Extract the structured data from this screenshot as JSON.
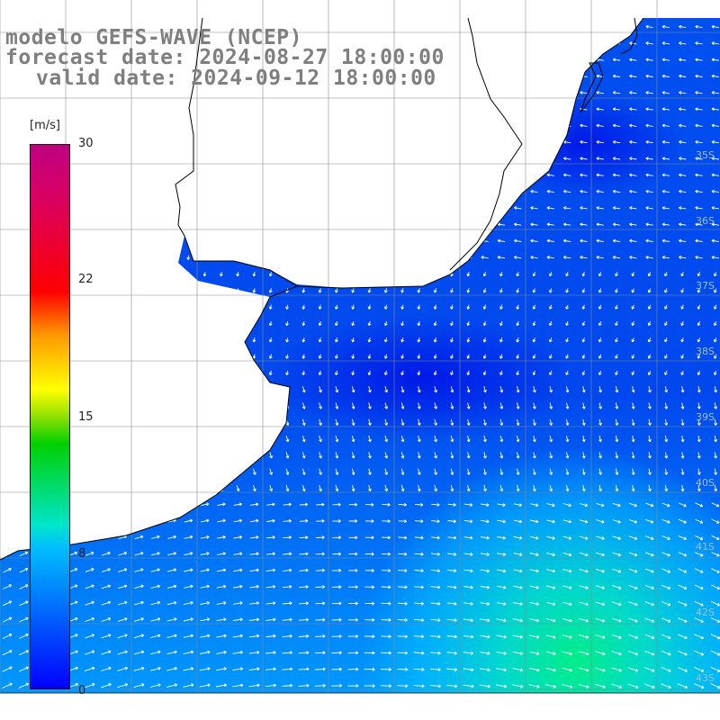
{
  "title": {
    "line1": "modelo GEFS-WAVE (NCEP)",
    "line2": "forecast date: 2024-08-27 18:00:00",
    "line3": "valid date: 2024-09-12 18:00:00"
  },
  "colorbar": {
    "unit": "[m/s]",
    "min": 0,
    "max": 30,
    "ticks": [
      "30",
      "22",
      "15",
      "8",
      "0"
    ]
  },
  "lat_labels": [
    "35S",
    "36S",
    "37S",
    "38S",
    "39S",
    "40S",
    "41S",
    "42S",
    "43S"
  ],
  "colors": {
    "background": "#ffffff",
    "land": "#ffffff",
    "grid": "#8a8a8a",
    "coast": "#000000",
    "arrow": "#ffffff",
    "title": "#7f7f7f"
  }
}
